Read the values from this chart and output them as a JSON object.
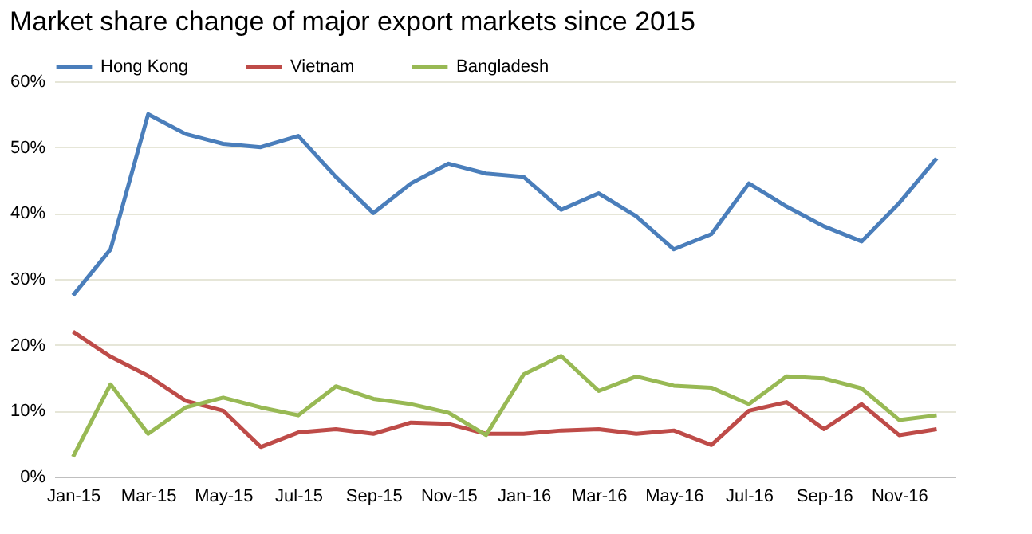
{
  "chart_data": {
    "type": "line",
    "title": "Market share change of major export markets since 2015",
    "categories": [
      "Jan-15",
      null,
      "Mar-15",
      null,
      "May-15",
      null,
      "Jul-15",
      null,
      "Sep-15",
      null,
      "Nov-15",
      null,
      "Jan-16",
      null,
      "Mar-16",
      null,
      "May-16",
      null,
      "Jul-16",
      null,
      "Sep-16",
      null,
      "Nov-16",
      null
    ],
    "series": [
      {
        "name": "Hong Kong",
        "color": "#4a7ebb",
        "values": [
          27.5,
          34.5,
          55,
          52,
          50.5,
          50,
          51.7,
          45.5,
          40,
          44.5,
          47.5,
          46,
          45.5,
          40.5,
          43,
          39.5,
          34.5,
          36.8,
          44.5,
          41,
          38,
          35.7,
          41.5,
          48.3
        ]
      },
      {
        "name": "Vietnam",
        "color": "#be4b48",
        "values": [
          22,
          18.2,
          15.3,
          11.5,
          10,
          4.5,
          6.7,
          7.2,
          6.5,
          8.2,
          8,
          6.5,
          6.5,
          7,
          7.2,
          6.5,
          7,
          4.8,
          10,
          11.3,
          7.2,
          11,
          6.3,
          7.2
        ]
      },
      {
        "name": "Bangladesh",
        "color": "#98b954",
        "values": [
          3,
          14,
          6.5,
          10.5,
          12,
          10.5,
          9.3,
          13.7,
          11.8,
          11,
          9.7,
          6.3,
          15.5,
          18.3,
          13,
          15.2,
          13.8,
          13.5,
          11,
          15.2,
          14.9,
          13.4,
          8.6,
          9.3
        ]
      }
    ],
    "ylim": [
      0,
      60
    ],
    "yticks": [
      {
        "value": 0,
        "label": "0%"
      },
      {
        "value": 10,
        "label": "10%"
      },
      {
        "value": 20,
        "label": "20%"
      },
      {
        "value": 30,
        "label": "30%"
      },
      {
        "value": 40,
        "label": "40%"
      },
      {
        "value": 50,
        "label": "50%"
      },
      {
        "value": 60,
        "label": "60%"
      }
    ],
    "grid": "y",
    "legend": "top left",
    "line_style": "solid"
  }
}
